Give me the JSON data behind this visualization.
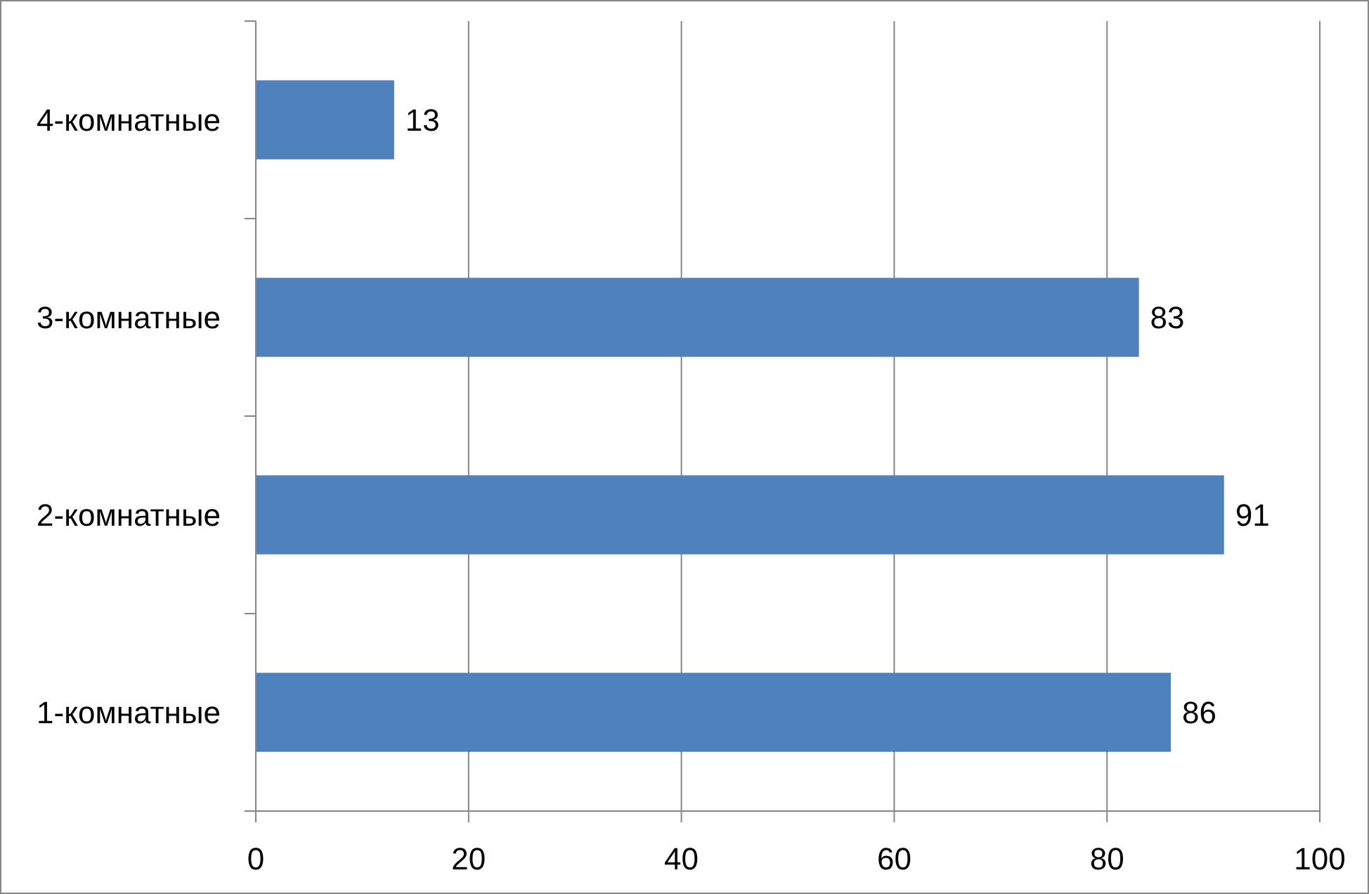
{
  "chart_data": {
    "type": "bar",
    "orientation": "horizontal",
    "categories": [
      "4-комнатные",
      "3-комнатные",
      "2-комнатные",
      "1-комнатные"
    ],
    "values": [
      13,
      83,
      91,
      86
    ],
    "color": "#4f81bd",
    "xlim": [
      0,
      100
    ],
    "xticks": [
      0,
      20,
      40,
      60,
      80,
      100
    ],
    "grid": "x",
    "data_labels": true
  }
}
